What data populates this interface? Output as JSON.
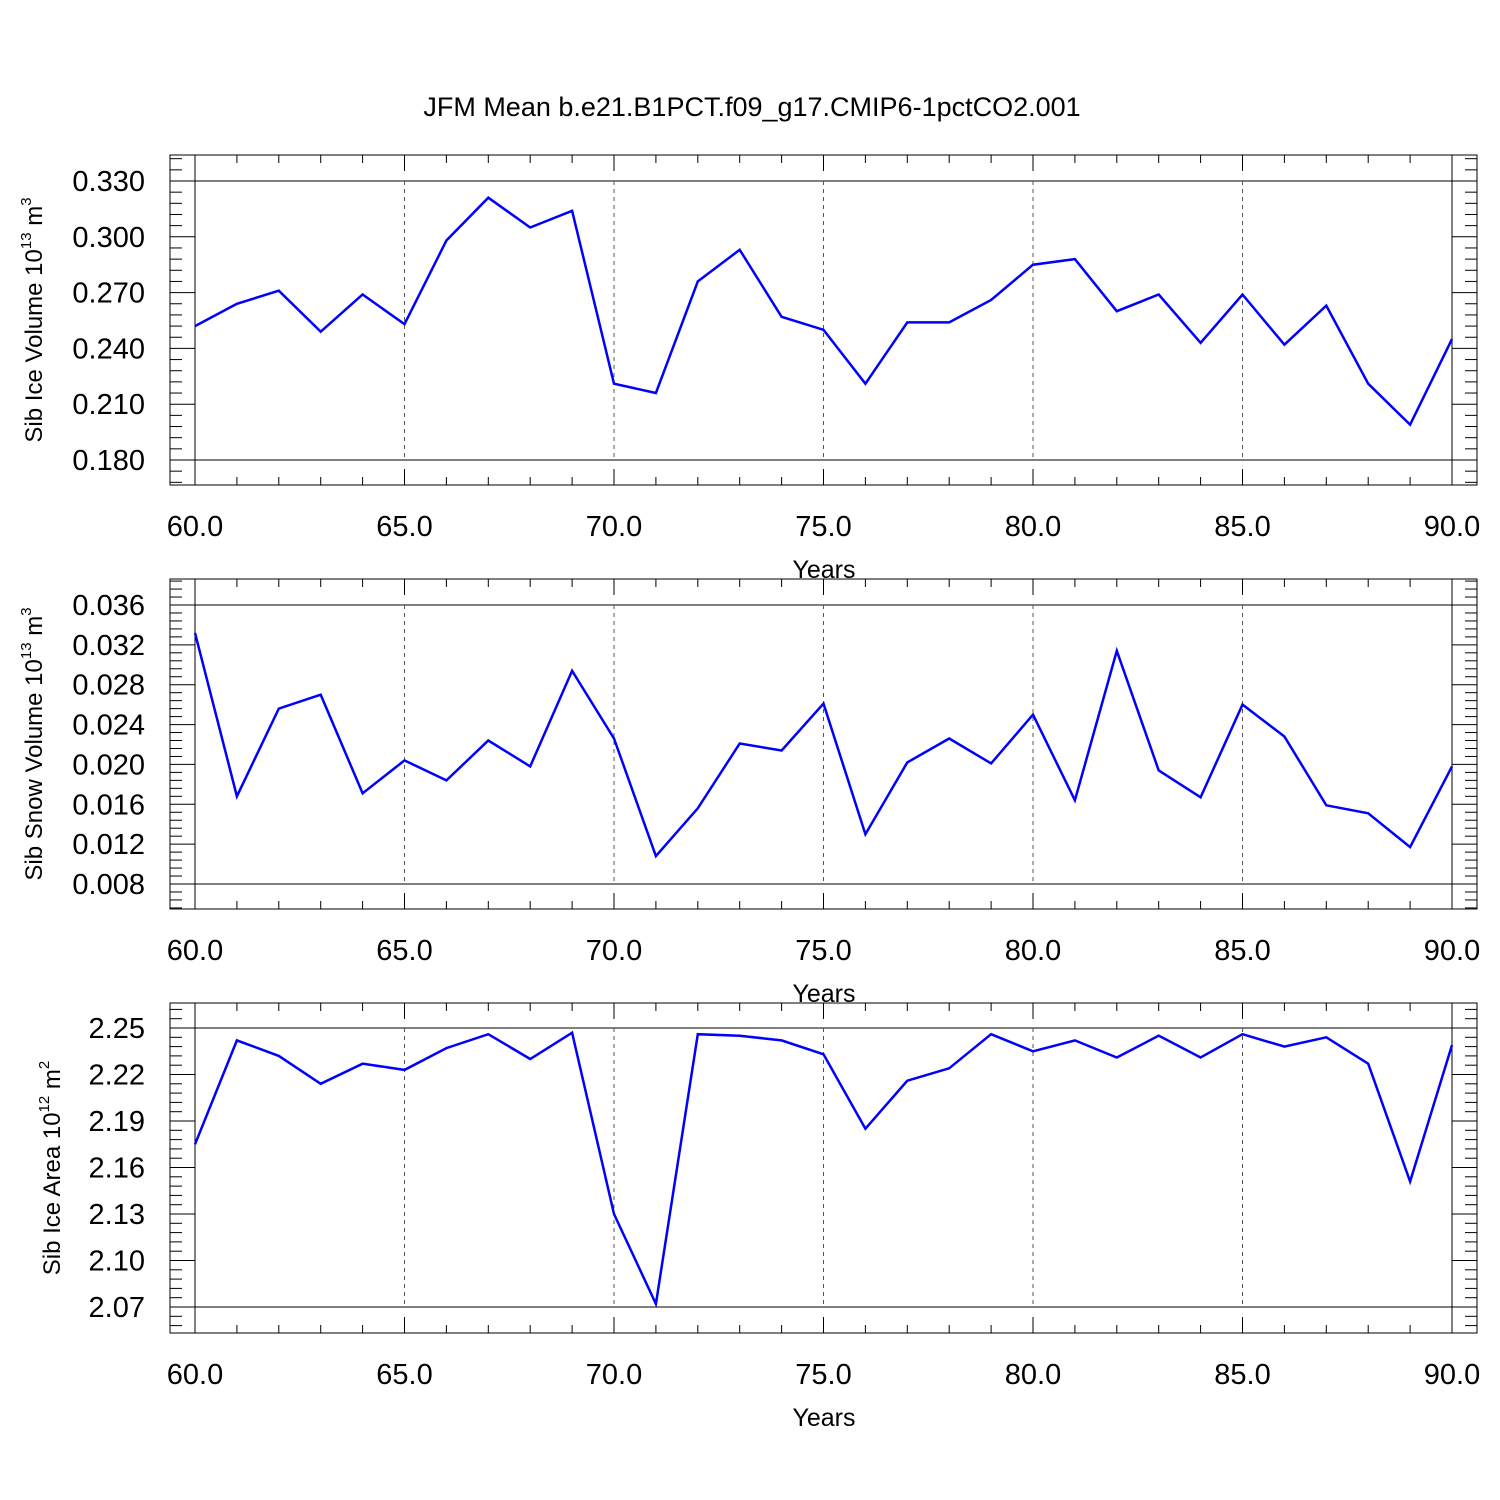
{
  "figure": {
    "title": "JFM Mean b.e21.B1PCT.f09_g17.CMIP6-1pctCO2.001"
  },
  "chart_data": [
    {
      "type": "line",
      "title": "",
      "xlabel": "Years",
      "ylabel": "Sib Ice Volume 10",
      "ylabel_sup": "13",
      "ylabel_unit": " m",
      "ylabel_unit_sup": "3",
      "xlim": [
        60,
        90
      ],
      "ylim": [
        0.18,
        0.33
      ],
      "xticks": [
        60,
        65,
        70,
        75,
        80,
        85,
        90
      ],
      "xtick_labels": [
        "60.0",
        "65.0",
        "70.0",
        "75.0",
        "80.0",
        "85.0",
        "90.0"
      ],
      "yticks": [
        0.18,
        0.21,
        0.24,
        0.27,
        0.3,
        0.33
      ],
      "ytick_labels": [
        "0.180",
        "0.210",
        "0.240",
        "0.270",
        "0.300",
        "0.330"
      ],
      "grid": "vertical dashed at major x ticks",
      "color": "#0000ff",
      "x": [
        60,
        61,
        62,
        63,
        64,
        65,
        66,
        67,
        68,
        69,
        70,
        71,
        72,
        73,
        74,
        75,
        76,
        77,
        78,
        79,
        80,
        81,
        82,
        83,
        84,
        85,
        86,
        87,
        88,
        89,
        90
      ],
      "y": [
        0.252,
        0.264,
        0.271,
        0.249,
        0.269,
        0.253,
        0.298,
        0.321,
        0.305,
        0.314,
        0.221,
        0.216,
        0.276,
        0.293,
        0.257,
        0.25,
        0.221,
        0.254,
        0.254,
        0.266,
        0.285,
        0.288,
        0.26,
        0.269,
        0.243,
        0.269,
        0.242,
        0.263,
        0.221,
        0.199,
        0.245
      ]
    },
    {
      "type": "line",
      "title": "",
      "xlabel": "Years",
      "ylabel": "Sib Snow Volume 10",
      "ylabel_sup": "13",
      "ylabel_unit": " m",
      "ylabel_unit_sup": "3",
      "xlim": [
        60,
        90
      ],
      "ylim": [
        0.008,
        0.036
      ],
      "xticks": [
        60,
        65,
        70,
        75,
        80,
        85,
        90
      ],
      "xtick_labels": [
        "60.0",
        "65.0",
        "70.0",
        "75.0",
        "80.0",
        "85.0",
        "90.0"
      ],
      "yticks": [
        0.008,
        0.012,
        0.016,
        0.02,
        0.024,
        0.028,
        0.032,
        0.036
      ],
      "ytick_labels": [
        "0.008",
        "0.012",
        "0.016",
        "0.020",
        "0.024",
        "0.028",
        "0.032",
        "0.036"
      ],
      "grid": "vertical dashed at major x ticks",
      "color": "#0000ff",
      "x": [
        60,
        61,
        62,
        63,
        64,
        65,
        66,
        67,
        68,
        69,
        70,
        71,
        72,
        73,
        74,
        75,
        76,
        77,
        78,
        79,
        80,
        81,
        82,
        83,
        84,
        85,
        86,
        87,
        88,
        89,
        90
      ],
      "y": [
        0.0332,
        0.0168,
        0.0256,
        0.027,
        0.0171,
        0.0204,
        0.0184,
        0.0224,
        0.0198,
        0.0294,
        0.0226,
        0.0108,
        0.0156,
        0.0221,
        0.0214,
        0.0261,
        0.013,
        0.0202,
        0.0226,
        0.0201,
        0.025,
        0.0164,
        0.0314,
        0.0194,
        0.0167,
        0.026,
        0.0228,
        0.0159,
        0.0151,
        0.0117,
        0.0198
      ]
    },
    {
      "type": "line",
      "title": "",
      "xlabel": "Years",
      "ylabel": "Sib Ice Area 10",
      "ylabel_sup": "12",
      "ylabel_unit": " m",
      "ylabel_unit_sup": "2",
      "xlim": [
        60,
        90
      ],
      "ylim": [
        2.07,
        2.25
      ],
      "xticks": [
        60,
        65,
        70,
        75,
        80,
        85,
        90
      ],
      "xtick_labels": [
        "60.0",
        "65.0",
        "70.0",
        "75.0",
        "80.0",
        "85.0",
        "90.0"
      ],
      "yticks": [
        2.07,
        2.1,
        2.13,
        2.16,
        2.19,
        2.22,
        2.25
      ],
      "ytick_labels": [
        "2.07",
        "2.10",
        "2.13",
        "2.16",
        "2.19",
        "2.22",
        "2.25"
      ],
      "grid": "vertical dashed at major x ticks",
      "color": "#0000ff",
      "x": [
        60,
        61,
        62,
        63,
        64,
        65,
        66,
        67,
        68,
        69,
        70,
        71,
        72,
        73,
        74,
        75,
        76,
        77,
        78,
        79,
        80,
        81,
        82,
        83,
        84,
        85,
        86,
        87,
        88,
        89,
        90
      ],
      "y": [
        2.175,
        2.242,
        2.232,
        2.214,
        2.227,
        2.223,
        2.237,
        2.246,
        2.23,
        2.247,
        2.13,
        2.072,
        2.246,
        2.245,
        2.242,
        2.233,
        2.185,
        2.216,
        2.224,
        2.246,
        2.235,
        2.242,
        2.231,
        2.245,
        2.231,
        2.246,
        2.238,
        2.244,
        2.227,
        2.151,
        2.239
      ]
    }
  ]
}
